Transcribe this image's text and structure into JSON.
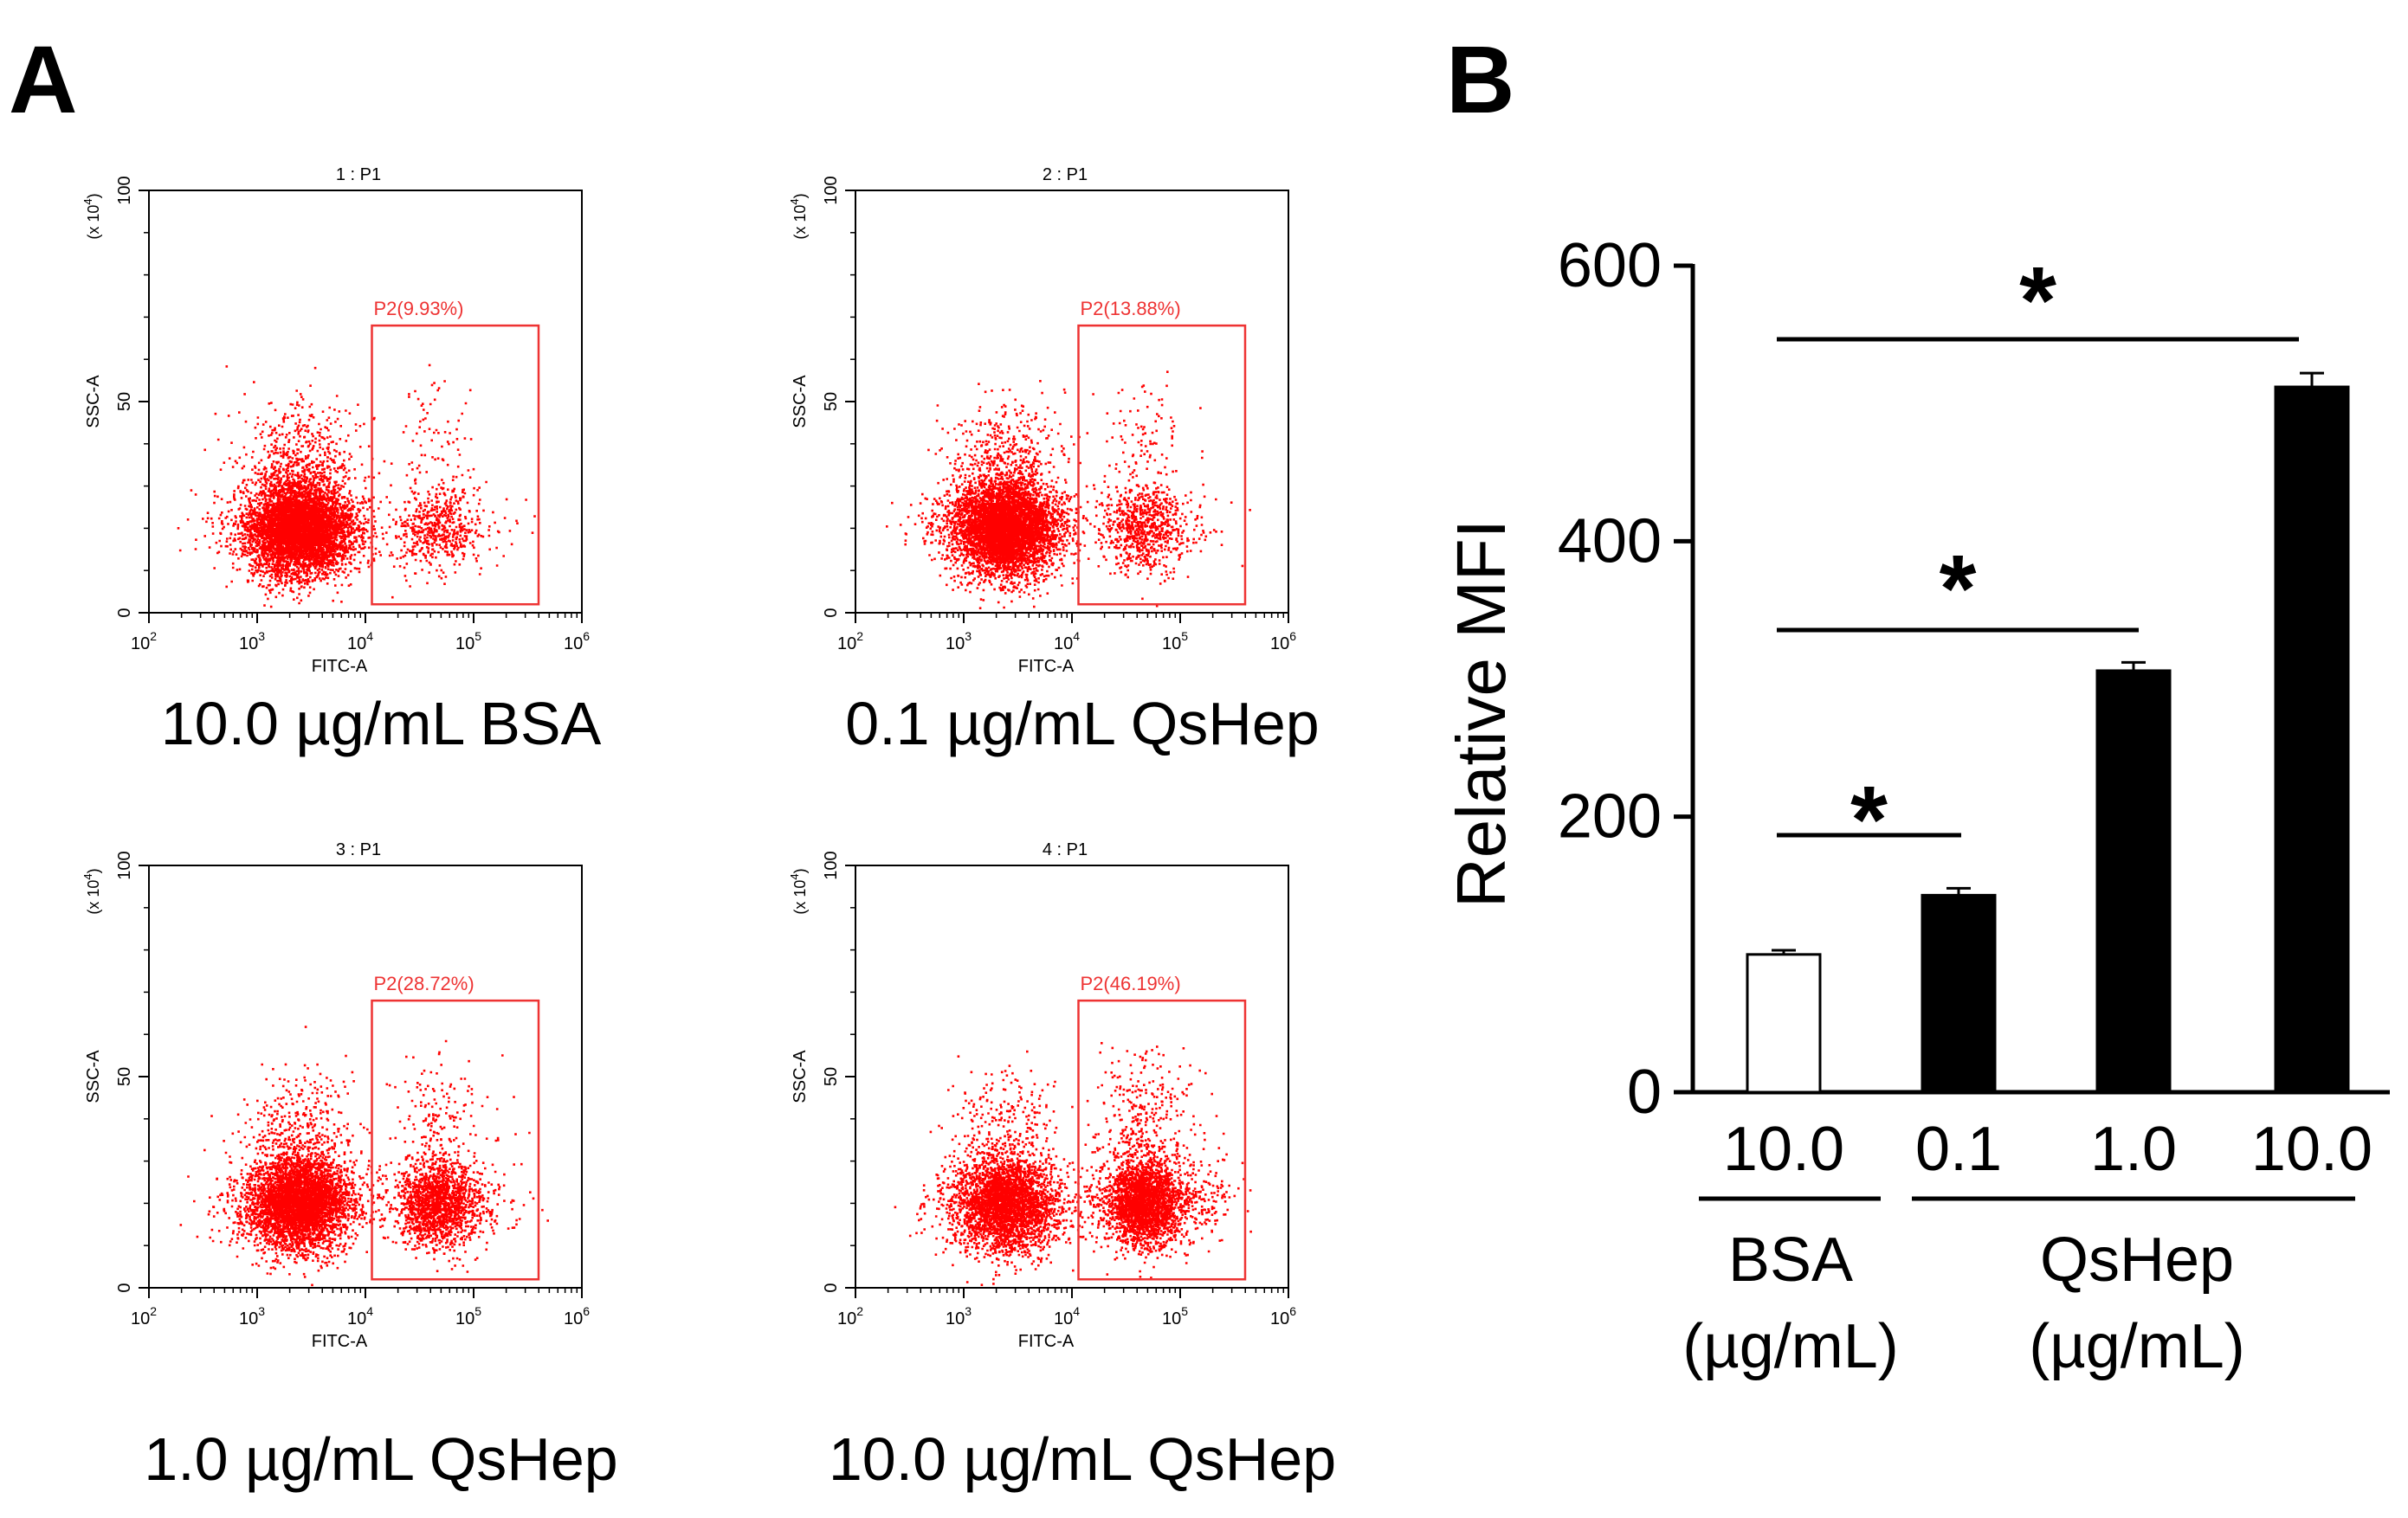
{
  "panels": {
    "a_label": "A",
    "b_label": "B"
  },
  "flow_plots": [
    {
      "title": "1 : P1",
      "gate_label": "P2(9.93%)",
      "gate_percent": 9.93,
      "caption": "10.0 µg/mL BSA"
    },
    {
      "title": "2 : P1",
      "gate_label": "P2(13.88%)",
      "gate_percent": 13.88,
      "caption": "0.1 µg/mL QsHep"
    },
    {
      "title": "3 : P1",
      "gate_label": "P2(28.72%)",
      "gate_percent": 28.72,
      "caption": "1.0 µg/mL QsHep"
    },
    {
      "title": "4 : P1",
      "gate_label": "P2(46.19%)",
      "gate_percent": 46.19,
      "caption": "10.0 µg/mL QsHep"
    }
  ],
  "flow_axes": {
    "xlabel": "FITC-A",
    "ylabel": "SSC-A",
    "yscale_base": "(x 10",
    "yscale_exp": "4",
    "yscale_close": ")",
    "yticks": [
      "0",
      "50",
      "100"
    ],
    "xticks": [
      {
        "base": "10",
        "exp": "2"
      },
      {
        "base": "10",
        "exp": "3"
      },
      {
        "base": "10",
        "exp": "4"
      },
      {
        "base": "10",
        "exp": "5"
      },
      {
        "base": "10",
        "exp": "6"
      }
    ]
  },
  "colors": {
    "dots": "#ff0000",
    "gate": "#ee3333",
    "bar_bsa": "#ffffff",
    "bar_qshep": "#000000",
    "axis": "#000000"
  },
  "chart_data": [
    {
      "type": "scatter",
      "description_series": "flow cytometry dot plots (4 conditions)",
      "x_scale": "log",
      "x_range": [
        100,
        1000000
      ],
      "y_range": [
        0,
        100
      ],
      "xlabel": "FITC-A",
      "ylabel": "SSC-A",
      "gated_percent": [
        9.93,
        13.88,
        28.72,
        46.19
      ],
      "conditions": [
        "10.0 µg/mL BSA",
        "0.1 µg/mL QsHep",
        "1.0 µg/mL QsHep",
        "10.0 µg/mL QsHep"
      ]
    },
    {
      "type": "bar",
      "ylabel": "Relative MFI",
      "ylim": [
        0,
        600
      ],
      "yticks": [
        0,
        200,
        400,
        600
      ],
      "categories": [
        "10.0",
        "0.1",
        "1.0",
        "10.0"
      ],
      "values": [
        100,
        143,
        306,
        512
      ],
      "errors": [
        3,
        5,
        6,
        10
      ],
      "groups": [
        {
          "name": "BSA",
          "unit": "(µg/mL)",
          "members": [
            0
          ]
        },
        {
          "name": "QsHep",
          "unit": "(µg/mL)",
          "members": [
            1,
            2,
            3
          ]
        }
      ],
      "significance": [
        {
          "from": 0,
          "to": 1,
          "label": "*"
        },
        {
          "from": 0,
          "to": 2,
          "label": "*"
        },
        {
          "from": 0,
          "to": 3,
          "label": "*"
        }
      ]
    }
  ]
}
